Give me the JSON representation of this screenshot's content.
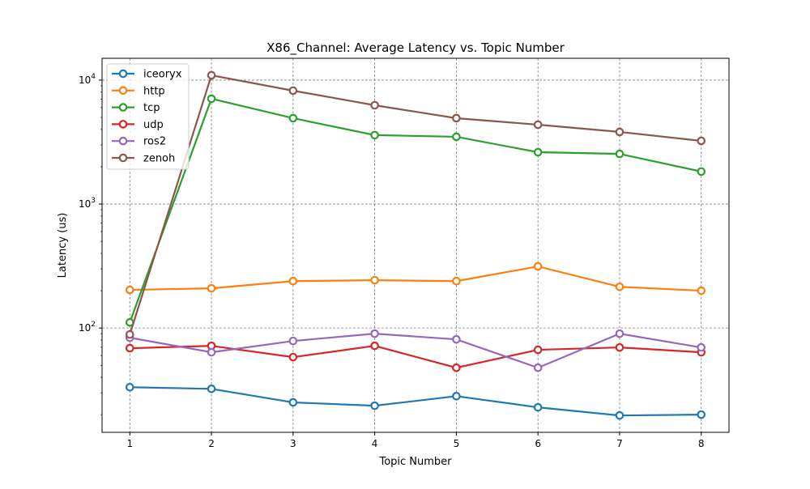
{
  "chart_data": {
    "type": "line",
    "title": "X86_Channel: Average Latency vs. Topic Number",
    "xlabel": "Topic Number",
    "ylabel": "Latency (us)",
    "yscale": "log",
    "x": [
      1,
      2,
      3,
      4,
      5,
      6,
      7,
      8
    ],
    "xlim": [
      0.66,
      8.34
    ],
    "ylim": [
      14.4,
      15000
    ],
    "xticks": [
      "1",
      "2",
      "3",
      "4",
      "5",
      "6",
      "7",
      "8"
    ],
    "yticks": [
      {
        "value": 100,
        "base": "10",
        "exp": "2"
      },
      {
        "value": 1000,
        "base": "10",
        "exp": "3"
      },
      {
        "value": 10000,
        "base": "10",
        "exp": "4"
      }
    ],
    "grid": true,
    "legend": "top-left",
    "marker": "open-circle",
    "series": [
      {
        "name": "iceoryx",
        "color": "#1f77b4",
        "values": [
          33.3,
          32.3,
          25.1,
          23.6,
          28.2,
          22.9,
          19.7,
          20.0
        ]
      },
      {
        "name": "http",
        "color": "#ff7f0e",
        "values": [
          203,
          209,
          239,
          243,
          239,
          314,
          215,
          200
        ]
      },
      {
        "name": "tcp",
        "color": "#2ca02c",
        "values": [
          111,
          7080,
          4930,
          3600,
          3490,
          2620,
          2540,
          1830
        ]
      },
      {
        "name": "udp",
        "color": "#d62728",
        "values": [
          68.7,
          71.8,
          58.2,
          71.8,
          47.8,
          66.7,
          69.7,
          63.7
        ]
      },
      {
        "name": "ros2",
        "color": "#9467bd",
        "values": [
          83.5,
          63.7,
          78.6,
          90,
          81,
          47.8,
          90,
          69.7
        ]
      },
      {
        "name": "zenoh",
        "color": "#8c564b",
        "values": [
          88.7,
          10940,
          8220,
          6270,
          4930,
          4370,
          3820,
          3235
        ]
      }
    ]
  }
}
